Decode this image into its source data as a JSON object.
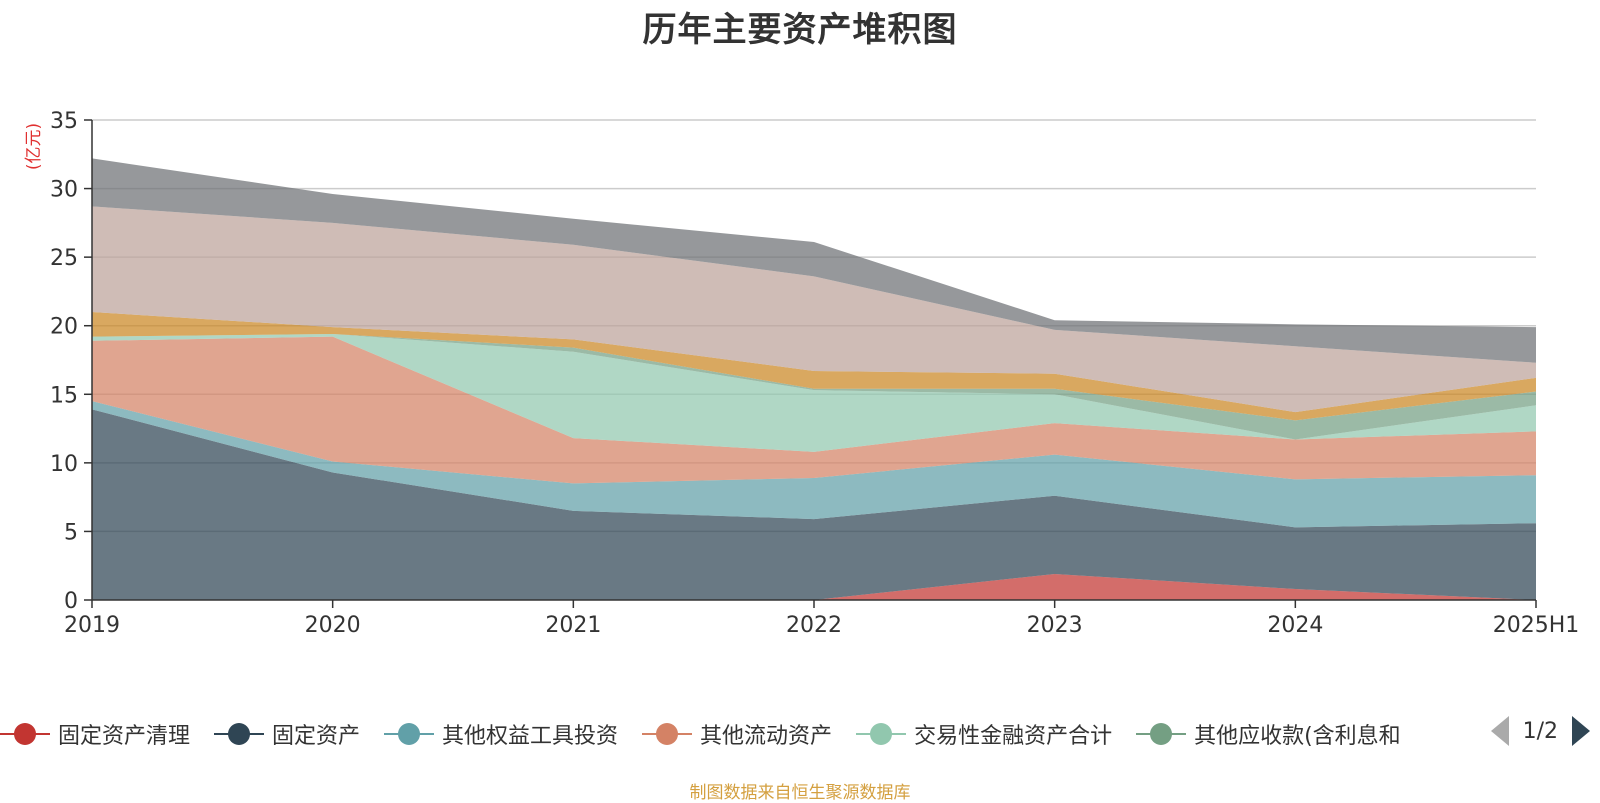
{
  "chart_data": {
    "type": "area",
    "title": "历年主要资产堆积图",
    "unit_label": "(亿元)",
    "categories": [
      "2019",
      "2020",
      "2021",
      "2022",
      "2023",
      "2024",
      "2025H1"
    ],
    "ylim": [
      0,
      35
    ],
    "yticks": [
      0,
      5,
      10,
      15,
      20,
      25,
      30,
      35
    ],
    "grid": true,
    "legend_position": "bottom",
    "stacked": true,
    "series": [
      {
        "name": "固定资产清理",
        "color": "#c23531",
        "values": [
          0,
          0,
          0,
          0,
          1.9,
          0.8,
          0
        ]
      },
      {
        "name": "固定资产",
        "color": "#2f4554",
        "values": [
          13.9,
          9.3,
          6.5,
          5.9,
          5.7,
          4.5,
          5.6
        ]
      },
      {
        "name": "其他权益工具投资",
        "color": "#61a0a8",
        "values": [
          0.6,
          0.8,
          2.0,
          3.0,
          3.0,
          3.5,
          3.5
        ]
      },
      {
        "name": "其他流动资产",
        "color": "#d48265",
        "values": [
          4.4,
          9.1,
          3.3,
          1.9,
          2.3,
          2.9,
          3.2
        ]
      },
      {
        "name": "交易性金融资产合计",
        "color": "#91c7ae",
        "values": [
          0.3,
          0.2,
          6.3,
          4.5,
          2.1,
          0,
          1.9
        ]
      },
      {
        "name": "其他应收款(含利息和股利)",
        "color": "#749f83",
        "values": [
          0,
          0,
          0.3,
          0.1,
          0.4,
          1.4,
          1.0
        ]
      },
      {
        "name": "",
        "color": "#ca8622",
        "values": [
          1.8,
          0.5,
          0.6,
          1.3,
          1.1,
          0.6,
          1.0
        ]
      },
      {
        "name": "",
        "color": "#bda29a",
        "values": [
          7.7,
          7.6,
          6.9,
          6.9,
          3.2,
          4.8,
          1.1
        ]
      },
      {
        "name": "",
        "color": "#6e7074",
        "values": [
          3.5,
          2.1,
          1.9,
          2.5,
          0.7,
          1.6,
          2.6
        ]
      }
    ]
  },
  "legend": {
    "items": [
      {
        "label": "固定资产清理",
        "color": "#c23531"
      },
      {
        "label": "固定资产",
        "color": "#2f4554"
      },
      {
        "label": "其他权益工具投资",
        "color": "#61a0a8"
      },
      {
        "label": "其他流动资产",
        "color": "#d48265"
      },
      {
        "label": "交易性金融资产合计",
        "color": "#91c7ae"
      },
      {
        "label": "其他应收款(含利息和",
        "color": "#749f83"
      }
    ],
    "page": "1/2"
  },
  "source": "制图数据来自恒生聚源数据库"
}
